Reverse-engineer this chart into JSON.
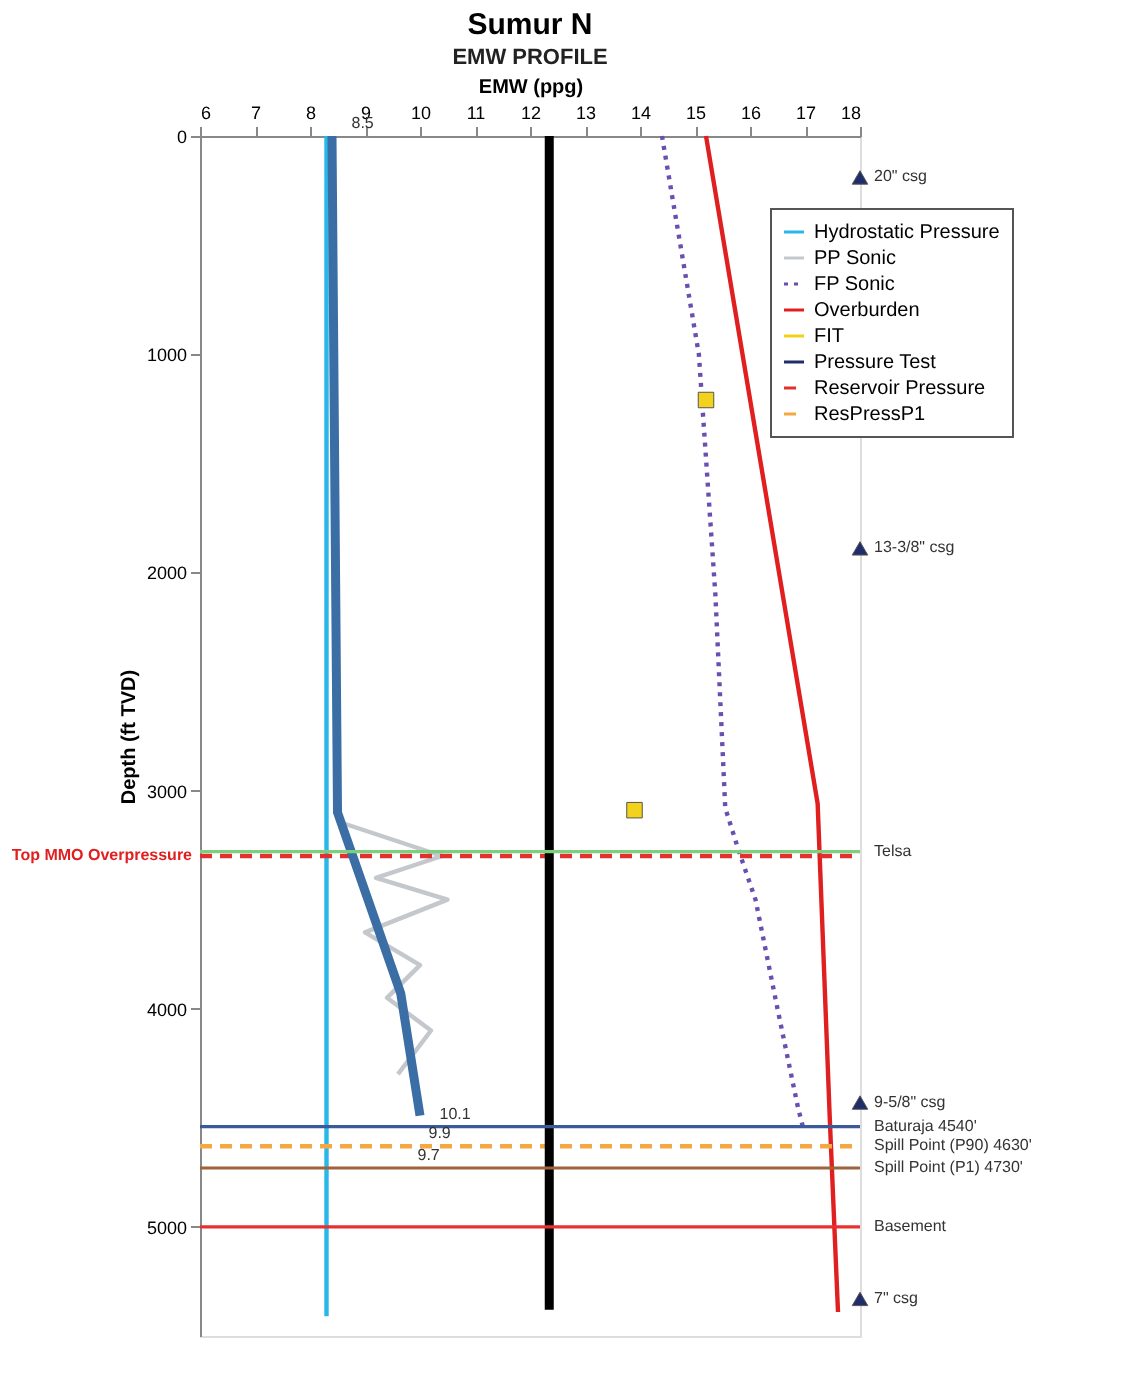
{
  "chart_data": {
    "type": "line",
    "title": "Sumur N",
    "subtitle": "EMW PROFILE",
    "xlabel": "EMW (ppg)",
    "ylabel": "Depth (ft TVD)",
    "xlim": [
      6,
      18
    ],
    "xticks": [
      6,
      7,
      8,
      9,
      10,
      11,
      12,
      13,
      14,
      15,
      16,
      17,
      18
    ],
    "ylim": [
      5500,
      0
    ],
    "yticks": [
      0,
      1000,
      2000,
      3000,
      4000,
      5000
    ],
    "grid": false,
    "legend": "top right",
    "series": [
      {
        "name": "Hydrostatic Pressure",
        "color": "#29b6e8",
        "x": [
          8.3,
          8.3
        ],
        "values": [
          0,
          5410
        ],
        "line_style": "solid"
      },
      {
        "name": "PP Sonic",
        "color": "#c4c8cc",
        "x": [
          8.6,
          10.4,
          9.2,
          10.5,
          9.0,
          10.0,
          9.4,
          10.2,
          9.6
        ],
        "values": [
          3150,
          3300,
          3400,
          3500,
          3650,
          3800,
          3950,
          4100,
          4300
        ],
        "line_style": "solid"
      },
      {
        "name": "FP Sonic",
        "color": "#6a4fb0",
        "x": [
          14.4,
          15.07,
          15.37,
          15.55,
          15.8,
          16.1,
          16.5,
          16.87,
          16.96
        ],
        "values": [
          0,
          1000,
          2100,
          3080,
          3280,
          3500,
          4000,
          4450,
          4540
        ],
        "line_style": "dotted"
      },
      {
        "name": "Overburden",
        "color": "#e02020",
        "x": [
          15.2,
          17.23,
          17.45,
          17.6
        ],
        "values": [
          0,
          3060,
          4500,
          5390
        ],
        "line_style": "solid"
      },
      {
        "name": "FIT",
        "type": "scatter",
        "color": "#f2d21b",
        "x": [
          15.2,
          13.9
        ],
        "values": [
          1210,
          3090
        ],
        "marker": "square"
      },
      {
        "name": "Pressure Test",
        "type": "scatter",
        "color": "#1f2d6b",
        "x": [
          18,
          18,
          18,
          18
        ],
        "values": [
          190,
          1890,
          4430,
          5330
        ],
        "marker": "triangle"
      },
      {
        "name": "Reservoir Pressure",
        "color": "#e03030",
        "x": [
          6,
          18
        ],
        "values": [
          3300,
          3300
        ],
        "line_style": "dashed"
      },
      {
        "name": "ResPressP1",
        "color": "#f5a840",
        "x": [
          6,
          18
        ],
        "values": [
          4630,
          4630
        ],
        "line_style": "dashed"
      },
      {
        "color": "#3a6ea5",
        "x": [
          8.4,
          8.5,
          9.65,
          10.0
        ],
        "values": [
          0,
          3100,
          3930,
          4490
        ],
        "line_style": "solid"
      },
      {
        "color": "#000000",
        "x": [
          12.35,
          12.35
        ],
        "values": [
          0,
          5380
        ],
        "line_style": "solid"
      }
    ],
    "ref_lines": [
      {
        "axis": "y",
        "value": 3280,
        "label": "Telsa",
        "color": "#7ccf7c"
      },
      {
        "axis": "y",
        "value": 4540,
        "label": "Baturaja 4540'",
        "color": "#3a5a9a"
      },
      {
        "axis": "y",
        "value": 4730,
        "label": "Spill Point (P1) 4730'",
        "color": "#a0623a"
      },
      {
        "axis": "y",
        "value": 5000,
        "label": "Basement",
        "color": "#e83030"
      }
    ],
    "annotations": [
      {
        "text": "20\" csg",
        "x": 18,
        "y": 190
      },
      {
        "text": "13-3/8\" csg",
        "x": 18,
        "y": 1890
      },
      {
        "text": "9-5/8\" csg",
        "x": 18,
        "y": 4430
      },
      {
        "text": "7\" csg",
        "x": 18,
        "y": 5330
      },
      {
        "text": "8.5",
        "x": 8.5,
        "y": 0
      },
      {
        "text": "10.1",
        "x": 10.1,
        "y": 4540
      },
      {
        "text": "9.9",
        "x": 9.9,
        "y": 4630
      },
      {
        "text": "9.7",
        "x": 9.7,
        "y": 4730
      },
      {
        "text": "Spill Point (P90) 4630'",
        "x": 18,
        "y": 4630
      },
      {
        "text": "Top MMO Overpressure",
        "x": 6,
        "y": 3300
      }
    ]
  }
}
